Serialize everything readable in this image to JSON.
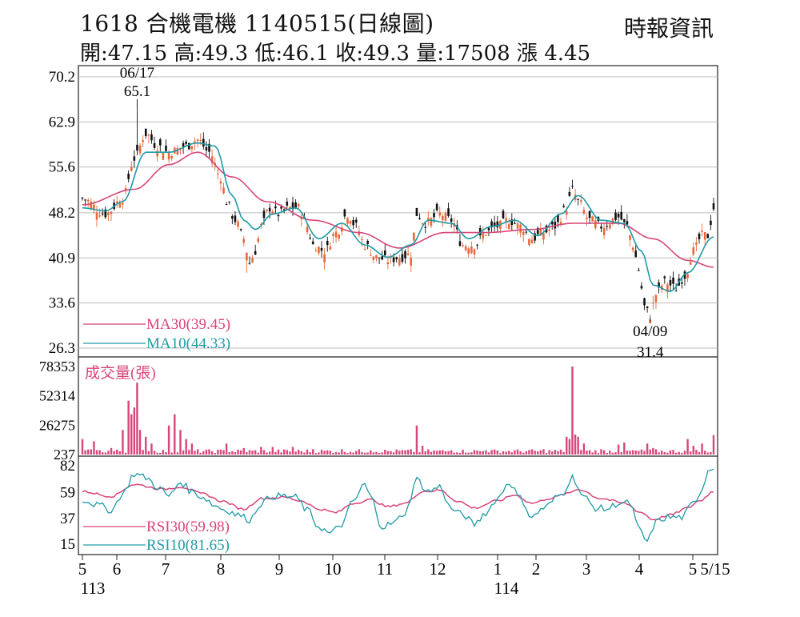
{
  "header": {
    "title": "1618  合機電機 1140515(日線圖)",
    "source": "時報資訊",
    "ohlc_line": "開:47.15 高:49.3 低:46.1 收:49.3 量:17508 漲 4.45"
  },
  "colors": {
    "up": "#e8683a",
    "down": "#111111",
    "ma30": "#d8457a",
    "ma10": "#1e9aa6",
    "volume": "#d8457a",
    "rsi30": "#d8457a",
    "rsi10": "#1e9aa6",
    "grid": "#bbbbbb"
  },
  "chart_data": [
    {
      "type": "candlestick",
      "panel": "price",
      "y_ticks": [
        "70.2",
        "62.9",
        "55.6",
        "48.2",
        "40.9",
        "33.6",
        "26.3"
      ],
      "ylim": [
        26.3,
        70.2
      ],
      "x_month_labels": [
        "5",
        "6",
        "7",
        "8",
        "9",
        "10",
        "11",
        "12",
        "1",
        "2",
        "3",
        "4",
        "5"
      ],
      "x_year_labels": [
        "113",
        "114"
      ],
      "x_end_label": "5/15",
      "annotations": [
        {
          "date": "06/17",
          "value": "65.1"
        },
        {
          "date": "04/09",
          "value": "31.4"
        }
      ],
      "legend": [
        {
          "name": "MA30(39.45)",
          "color": "#d8457a"
        },
        {
          "name": "MA10(44.33)",
          "color": "#1e9aa6"
        }
      ],
      "close_anchors": [
        [
          0,
          50.5
        ],
        [
          8,
          48
        ],
        [
          14,
          50.5
        ],
        [
          18,
          57
        ],
        [
          22,
          61
        ],
        [
          26,
          59
        ],
        [
          30,
          58
        ],
        [
          36,
          59
        ],
        [
          40,
          60
        ],
        [
          44,
          58
        ],
        [
          48,
          54
        ],
        [
          50,
          50
        ],
        [
          53,
          47
        ],
        [
          56,
          44
        ],
        [
          58,
          40
        ],
        [
          60,
          42
        ],
        [
          62,
          46
        ],
        [
          65,
          49
        ],
        [
          68,
          48
        ],
        [
          72,
          49
        ],
        [
          75,
          49
        ],
        [
          78,
          46
        ],
        [
          80,
          43
        ],
        [
          84,
          42
        ],
        [
          88,
          45
        ],
        [
          92,
          48
        ],
        [
          95,
          46
        ],
        [
          98,
          43
        ],
        [
          102,
          41
        ],
        [
          106,
          40.5
        ],
        [
          110,
          41
        ],
        [
          114,
          41.5
        ],
        [
          116,
          48
        ],
        [
          119,
          46.5
        ],
        [
          124,
          48
        ],
        [
          128,
          47
        ],
        [
          132,
          43
        ],
        [
          136,
          43
        ],
        [
          140,
          45
        ],
        [
          144,
          46
        ],
        [
          148,
          47
        ],
        [
          152,
          46
        ],
        [
          156,
          44
        ],
        [
          160,
          45
        ],
        [
          164,
          46
        ],
        [
          168,
          49
        ],
        [
          170,
          52
        ],
        [
          172,
          50
        ],
        [
          176,
          47
        ],
        [
          180,
          46
        ],
        [
          186,
          47.5
        ],
        [
          189,
          46
        ],
        [
          191,
          43
        ],
        [
          193,
          39
        ],
        [
          195,
          33
        ],
        [
          197,
          31.5
        ],
        [
          199,
          35
        ],
        [
          202,
          37
        ],
        [
          206,
          36
        ],
        [
          209,
          38
        ],
        [
          212,
          42
        ],
        [
          215,
          44.5
        ],
        [
          217,
          44.5
        ],
        [
          219,
          49
        ]
      ],
      "ma30_anchors": [
        [
          0,
          49.5
        ],
        [
          18,
          52
        ],
        [
          30,
          56
        ],
        [
          40,
          58
        ],
        [
          52,
          54
        ],
        [
          64,
          50
        ],
        [
          80,
          47
        ],
        [
          96,
          45
        ],
        [
          110,
          42.5
        ],
        [
          126,
          45
        ],
        [
          140,
          45
        ],
        [
          156,
          45.5
        ],
        [
          170,
          46.5
        ],
        [
          186,
          46.5
        ],
        [
          198,
          44
        ],
        [
          210,
          40.5
        ],
        [
          219,
          39.4
        ]
      ],
      "ma10_anchors": [
        [
          0,
          49
        ],
        [
          8,
          48.5
        ],
        [
          14,
          50
        ],
        [
          22,
          58
        ],
        [
          30,
          58
        ],
        [
          40,
          59.5
        ],
        [
          46,
          59
        ],
        [
          52,
          51
        ],
        [
          56,
          47
        ],
        [
          60,
          45.5
        ],
        [
          66,
          48
        ],
        [
          74,
          49
        ],
        [
          82,
          44
        ],
        [
          90,
          46.5
        ],
        [
          98,
          43
        ],
        [
          106,
          41
        ],
        [
          114,
          43
        ],
        [
          120,
          47
        ],
        [
          128,
          46.5
        ],
        [
          134,
          44
        ],
        [
          142,
          46
        ],
        [
          150,
          47
        ],
        [
          158,
          44.5
        ],
        [
          166,
          48
        ],
        [
          172,
          51
        ],
        [
          180,
          47
        ],
        [
          188,
          46.5
        ],
        [
          194,
          42
        ],
        [
          198,
          36.5
        ],
        [
          204,
          35.5
        ],
        [
          210,
          38.5
        ],
        [
          219,
          44.3
        ]
      ]
    },
    {
      "type": "bar",
      "panel": "volume",
      "title": "成交量(張)",
      "y_ticks": [
        "78353",
        "52314",
        "26275",
        "237"
      ],
      "ylim": [
        237,
        78353
      ],
      "spikes": [
        [
          0,
          14000
        ],
        [
          4,
          12000
        ],
        [
          10,
          6000
        ],
        [
          14,
          22000
        ],
        [
          16,
          48000
        ],
        [
          17,
          36000
        ],
        [
          18,
          42000
        ],
        [
          19,
          64000
        ],
        [
          20,
          22000
        ],
        [
          22,
          16000
        ],
        [
          24,
          10000
        ],
        [
          30,
          26000
        ],
        [
          32,
          36000
        ],
        [
          34,
          22000
        ],
        [
          36,
          14000
        ],
        [
          38,
          10000
        ],
        [
          50,
          10000
        ],
        [
          56,
          6000
        ],
        [
          62,
          7000
        ],
        [
          66,
          7000
        ],
        [
          73,
          7000
        ],
        [
          80,
          5000
        ],
        [
          90,
          5000
        ],
        [
          100,
          4000
        ],
        [
          112,
          4000
        ],
        [
          116,
          26000
        ],
        [
          118,
          8000
        ],
        [
          128,
          4000
        ],
        [
          140,
          4000
        ],
        [
          150,
          4000
        ],
        [
          160,
          5000
        ],
        [
          168,
          16000
        ],
        [
          169,
          14000
        ],
        [
          170,
          78353
        ],
        [
          171,
          18000
        ],
        [
          172,
          16000
        ],
        [
          174,
          10000
        ],
        [
          180,
          5000
        ],
        [
          186,
          9000
        ],
        [
          188,
          11000
        ],
        [
          196,
          10000
        ],
        [
          198,
          6000
        ],
        [
          210,
          14000
        ],
        [
          212,
          8000
        ],
        [
          215,
          10000
        ],
        [
          219,
          17508
        ]
      ]
    },
    {
      "type": "line",
      "panel": "rsi",
      "y_ticks": [
        "82",
        "59",
        "37",
        "15"
      ],
      "ylim": [
        15,
        82
      ],
      "legend": [
        {
          "name": "RSI30(59.98)",
          "color": "#d8457a"
        },
        {
          "name": "RSI10(81.65)",
          "color": "#1e9aa6"
        }
      ],
      "rsi10_anchors": [
        [
          0,
          53
        ],
        [
          6,
          48
        ],
        [
          10,
          44
        ],
        [
          14,
          58
        ],
        [
          18,
          75
        ],
        [
          22,
          72
        ],
        [
          26,
          64
        ],
        [
          30,
          56
        ],
        [
          34,
          68
        ],
        [
          38,
          60
        ],
        [
          42,
          55
        ],
        [
          46,
          48
        ],
        [
          50,
          44
        ],
        [
          54,
          40
        ],
        [
          58,
          36
        ],
        [
          62,
          50
        ],
        [
          66,
          56
        ],
        [
          70,
          56
        ],
        [
          74,
          55
        ],
        [
          78,
          44
        ],
        [
          82,
          30
        ],
        [
          86,
          24
        ],
        [
          90,
          32
        ],
        [
          94,
          52
        ],
        [
          98,
          66
        ],
        [
          100,
          55
        ],
        [
          104,
          30
        ],
        [
          108,
          33
        ],
        [
          112,
          42
        ],
        [
          116,
          70
        ],
        [
          120,
          60
        ],
        [
          124,
          64
        ],
        [
          128,
          45
        ],
        [
          132,
          40
        ],
        [
          136,
          32
        ],
        [
          140,
          42
        ],
        [
          144,
          54
        ],
        [
          148,
          68
        ],
        [
          152,
          54
        ],
        [
          156,
          38
        ],
        [
          160,
          46
        ],
        [
          166,
          57
        ],
        [
          170,
          72
        ],
        [
          174,
          55
        ],
        [
          178,
          46
        ],
        [
          182,
          45
        ],
        [
          186,
          50
        ],
        [
          190,
          50
        ],
        [
          193,
          28
        ],
        [
          196,
          17
        ],
        [
          199,
          34
        ],
        [
          203,
          38
        ],
        [
          208,
          38
        ],
        [
          212,
          50
        ],
        [
          215,
          62
        ],
        [
          217,
          78
        ],
        [
          219,
          81.65
        ]
      ],
      "rsi30_anchors": [
        [
          0,
          60
        ],
        [
          10,
          56
        ],
        [
          18,
          66
        ],
        [
          28,
          62
        ],
        [
          34,
          64
        ],
        [
          42,
          58
        ],
        [
          48,
          52
        ],
        [
          56,
          45
        ],
        [
          62,
          54
        ],
        [
          70,
          55
        ],
        [
          76,
          52
        ],
        [
          82,
          45
        ],
        [
          88,
          42
        ],
        [
          94,
          50
        ],
        [
          100,
          53
        ],
        [
          106,
          47
        ],
        [
          112,
          50
        ],
        [
          118,
          60
        ],
        [
          124,
          61
        ],
        [
          130,
          52
        ],
        [
          136,
          46
        ],
        [
          144,
          52
        ],
        [
          150,
          57
        ],
        [
          156,
          50
        ],
        [
          162,
          54
        ],
        [
          168,
          58
        ],
        [
          172,
          62
        ],
        [
          180,
          54
        ],
        [
          188,
          50
        ],
        [
          194,
          42
        ],
        [
          198,
          36
        ],
        [
          204,
          40
        ],
        [
          210,
          46
        ],
        [
          214,
          52
        ],
        [
          219,
          59.98
        ]
      ]
    }
  ]
}
